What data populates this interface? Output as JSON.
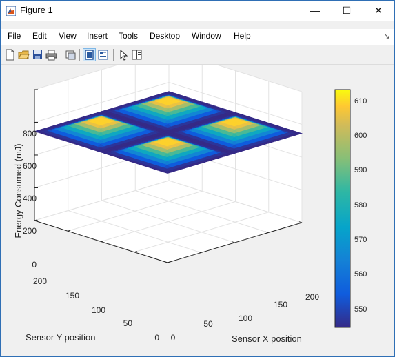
{
  "window": {
    "title": "Figure 1",
    "controls": {
      "minimize": "—",
      "maximize": "☐",
      "close": "✕"
    }
  },
  "menubar": {
    "items": [
      "File",
      "Edit",
      "View",
      "Insert",
      "Tools",
      "Desktop",
      "Window",
      "Help"
    ]
  },
  "toolbar": {
    "icons": [
      "new-figure-icon",
      "open-file-icon",
      "save-icon",
      "print-icon",
      "link-plot-icon",
      "hide-plot-tools-icon",
      "show-plot-tools-icon",
      "edit-plot-arrow-icon",
      "insert-legend-icon"
    ]
  },
  "chart_data": {
    "type": "surface",
    "zlabel": "Energy Consumed (mJ)",
    "xlabel": "Sensor X position",
    "ylabel": "Sensor Y position",
    "xlim": [
      0,
      200
    ],
    "ylim": [
      0,
      200
    ],
    "zlim": [
      0,
      800
    ],
    "x_ticks": [
      "0",
      "50",
      "100",
      "150",
      "200"
    ],
    "y_ticks": [
      "0",
      "50",
      "100",
      "150",
      "200"
    ],
    "z_ticks": [
      "0",
      "200",
      "400",
      "600",
      "800"
    ],
    "colorbar": {
      "min": 545,
      "max": 614,
      "ticks": [
        "550",
        "560",
        "570",
        "580",
        "590",
        "600",
        "610"
      ],
      "tick_values": [
        550,
        560,
        570,
        580,
        590,
        600,
        610
      ],
      "colormap": "parula"
    },
    "base_value": 545,
    "peaks": [
      {
        "x": 50,
        "y": 150,
        "value": 610
      },
      {
        "x": 150,
        "y": 150,
        "value": 610
      },
      {
        "x": 50,
        "y": 50,
        "value": 610
      },
      {
        "x": 150,
        "y": 50,
        "value": 610
      }
    ],
    "grid": true
  }
}
